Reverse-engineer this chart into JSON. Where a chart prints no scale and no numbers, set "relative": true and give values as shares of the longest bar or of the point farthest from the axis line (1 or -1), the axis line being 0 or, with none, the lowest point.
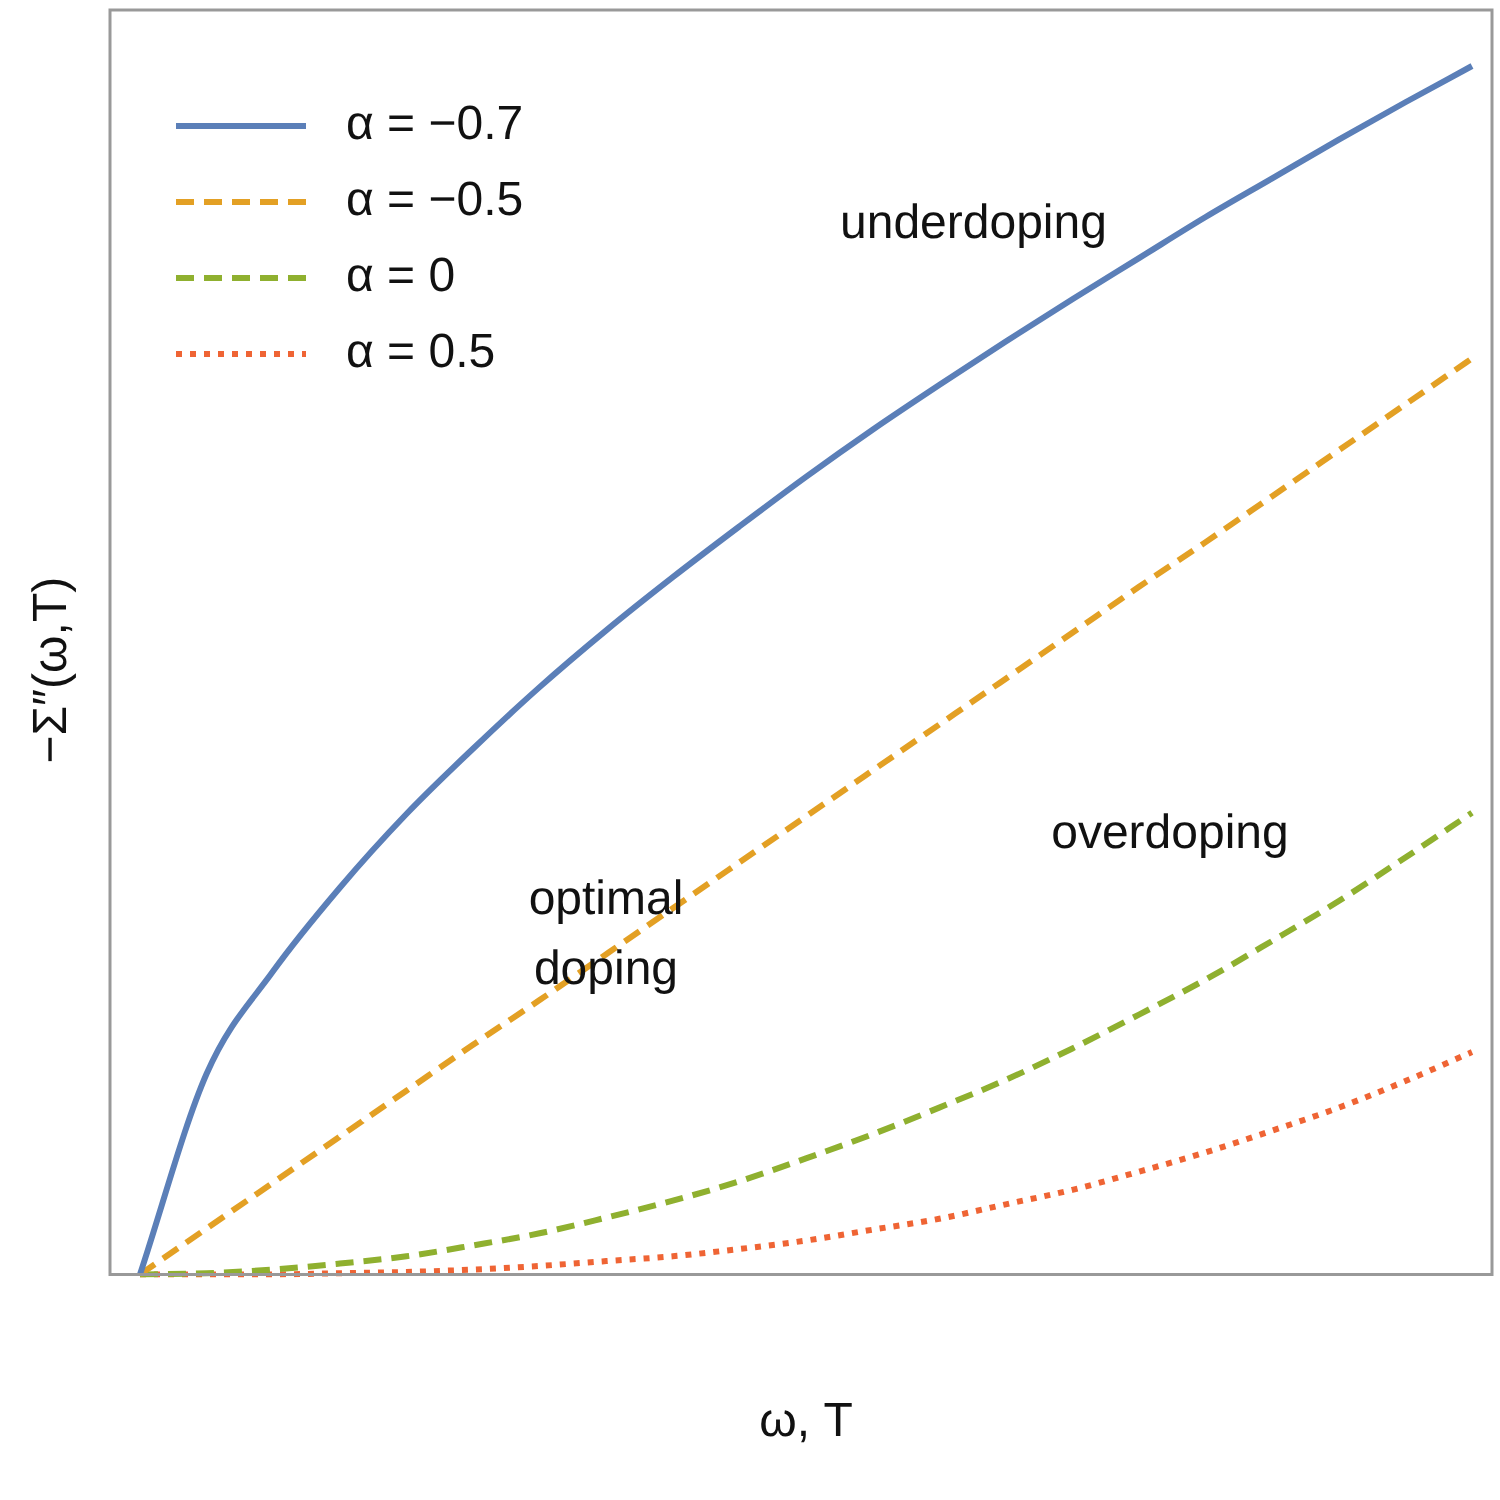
{
  "chart_data": {
    "type": "line",
    "relative": true,
    "xlabel": "ω, T",
    "ylabel": "−Σ″(ω,T)",
    "categories": [
      null,
      null,
      null,
      null,
      null,
      null,
      null,
      null,
      null,
      null,
      null,
      null,
      null,
      null,
      null,
      null,
      null,
      null,
      null,
      null,
      null
    ],
    "series": [
      {
        "name": "α = −0.7",
        "color": "#5b7fb8",
        "line_style": "solid",
        "values": [
          0,
          0.166,
          0.251,
          0.32,
          0.381,
          0.435,
          0.486,
          0.533,
          0.577,
          0.619,
          0.66,
          0.699,
          0.736,
          0.772,
          0.807,
          0.841,
          0.875,
          0.907,
          0.939,
          0.97,
          1
        ]
      },
      {
        "name": "α = −0.5",
        "color": "#e3a024",
        "line_style": "dashed",
        "values": [
          0,
          0.038,
          0.076,
          0.114,
          0.152,
          0.19,
          0.227,
          0.265,
          0.303,
          0.341,
          0.379,
          0.417,
          0.455,
          0.493,
          0.531,
          0.569,
          0.606,
          0.644,
          0.682,
          0.72,
          0.758
        ]
      },
      {
        "name": "α = 0",
        "color": "#8fb02f",
        "line_style": "dashed",
        "values": [
          0,
          0.001,
          0.004,
          0.009,
          0.015,
          0.024,
          0.034,
          0.047,
          0.061,
          0.077,
          0.096,
          0.116,
          0.138,
          0.161,
          0.187,
          0.215,
          0.244,
          0.276,
          0.309,
          0.345,
          0.382
        ]
      },
      {
        "name": "α = 0.5",
        "color": "#ef6434",
        "line_style": "dotted",
        "values": [
          0,
          0,
          0,
          0.001,
          0.002,
          0.004,
          0.007,
          0.011,
          0.015,
          0.021,
          0.028,
          0.037,
          0.046,
          0.058,
          0.07,
          0.085,
          0.101,
          0.119,
          0.138,
          0.16,
          0.184
        ]
      }
    ],
    "annotations": [
      "underdoping",
      "optimal doping",
      "overdoping"
    ],
    "legend": "top left",
    "grid": false,
    "marker": "none"
  }
}
